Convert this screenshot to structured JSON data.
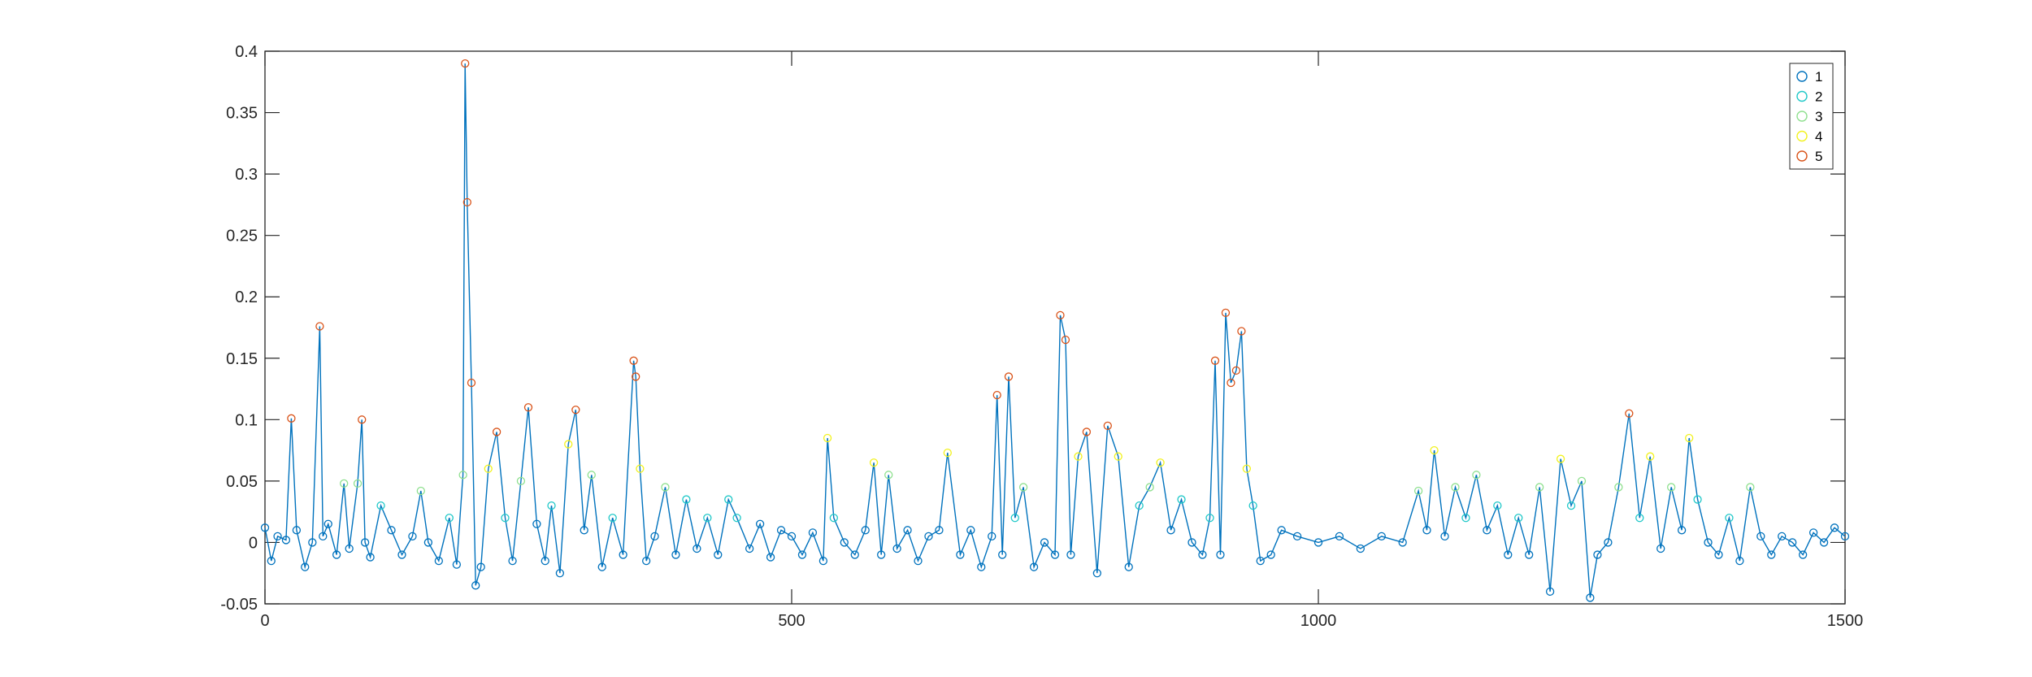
{
  "chart_data": {
    "type": "line",
    "title": "",
    "xlabel": "",
    "ylabel": "",
    "xlim": [
      0,
      1500
    ],
    "ylim": [
      -0.05,
      0.4
    ],
    "xticks": [
      "0",
      "500",
      "1000",
      "1500"
    ],
    "xtick_values": [
      0,
      500,
      1000,
      1500
    ],
    "yticks": [
      "-0.05",
      "0",
      "0.05",
      "0.1",
      "0.15",
      "0.2",
      "0.25",
      "0.3",
      "0.35",
      "0.4"
    ],
    "ytick_values": [
      -0.05,
      0,
      0.05,
      0.1,
      0.15,
      0.2,
      0.25,
      0.3,
      0.35,
      0.4
    ],
    "grid": false,
    "legend_position": "top-right",
    "line_color": "#0072bd",
    "series": [
      {
        "name": "1",
        "color": "#0072bd",
        "marker": "circle"
      },
      {
        "name": "2",
        "color": "#1fc8c8",
        "marker": "circle"
      },
      {
        "name": "3",
        "color": "#8fe08f",
        "marker": "circle"
      },
      {
        "name": "4",
        "color": "#f2f21e",
        "marker": "circle"
      },
      {
        "name": "5",
        "color": "#d95319",
        "marker": "circle"
      }
    ],
    "class_thresholds": [
      0.02,
      0.04,
      0.06,
      0.09
    ],
    "x": [
      0,
      6,
      12,
      20,
      25,
      30,
      38,
      45,
      52,
      55,
      60,
      68,
      75,
      80,
      88,
      92,
      95,
      100,
      110,
      120,
      130,
      140,
      148,
      155,
      165,
      175,
      182,
      188,
      190,
      192,
      196,
      200,
      205,
      212,
      220,
      228,
      235,
      243,
      250,
      258,
      266,
      272,
      280,
      288,
      295,
      303,
      310,
      320,
      330,
      340,
      350,
      352,
      356,
      362,
      370,
      380,
      390,
      400,
      410,
      420,
      430,
      440,
      448,
      460,
      470,
      480,
      490,
      500,
      510,
      520,
      530,
      534,
      540,
      550,
      560,
      570,
      578,
      585,
      592,
      600,
      610,
      620,
      630,
      640,
      648,
      660,
      670,
      680,
      690,
      695,
      700,
      706,
      712,
      720,
      730,
      740,
      750,
      755,
      760,
      765,
      772,
      780,
      790,
      800,
      810,
      820,
      830,
      840,
      850,
      860,
      870,
      880,
      890,
      897,
      902,
      907,
      912,
      917,
      922,
      927,
      932,
      938,
      945,
      955,
      965,
      980,
      1000,
      1020,
      1040,
      1060,
      1080,
      1095,
      1103,
      1110,
      1120,
      1130,
      1140,
      1150,
      1160,
      1170,
      1180,
      1190,
      1200,
      1210,
      1220,
      1230,
      1240,
      1250,
      1258,
      1265,
      1275,
      1285,
      1295,
      1305,
      1315,
      1325,
      1335,
      1345,
      1352,
      1360,
      1370,
      1380,
      1390,
      1400,
      1410,
      1420,
      1430,
      1440,
      1450,
      1460,
      1470,
      1480,
      1490,
      1500
    ],
    "y": [
      0.012,
      -0.015,
      0.005,
      0.002,
      0.101,
      0.01,
      -0.02,
      0.0,
      0.176,
      0.005,
      0.015,
      -0.01,
      0.048,
      -0.005,
      0.048,
      0.1,
      0.0,
      -0.012,
      0.03,
      0.01,
      -0.01,
      0.005,
      0.042,
      0.0,
      -0.015,
      0.02,
      -0.018,
      0.055,
      0.39,
      0.277,
      0.13,
      -0.035,
      -0.02,
      0.06,
      0.09,
      0.02,
      -0.015,
      0.05,
      0.11,
      0.015,
      -0.015,
      0.03,
      -0.025,
      0.08,
      0.108,
      0.01,
      0.055,
      -0.02,
      0.02,
      -0.01,
      0.148,
      0.135,
      0.06,
      -0.015,
      0.005,
      0.045,
      -0.01,
      0.035,
      -0.005,
      0.02,
      -0.01,
      0.035,
      0.02,
      -0.005,
      0.015,
      -0.012,
      0.01,
      0.005,
      -0.01,
      0.008,
      -0.015,
      0.085,
      0.02,
      0.0,
      -0.01,
      0.01,
      0.065,
      -0.01,
      0.055,
      -0.005,
      0.01,
      -0.015,
      0.005,
      0.01,
      0.073,
      -0.01,
      0.01,
      -0.02,
      0.005,
      0.12,
      -0.01,
      0.135,
      0.02,
      0.045,
      -0.02,
      0.0,
      -0.01,
      0.185,
      0.165,
      -0.01,
      0.07,
      0.09,
      -0.025,
      0.095,
      0.07,
      -0.02,
      0.03,
      0.045,
      0.065,
      0.01,
      0.035,
      0.0,
      -0.01,
      0.02,
      0.148,
      -0.01,
      0.187,
      0.13,
      0.14,
      0.172,
      0.06,
      0.03,
      -0.015,
      -0.01,
      0.01,
      0.005,
      0.0,
      0.005,
      -0.005,
      0.005,
      0.0,
      0.042,
      0.01,
      0.075,
      0.005,
      0.045,
      0.02,
      0.055,
      0.01,
      0.03,
      -0.01,
      0.02,
      -0.01,
      0.045,
      -0.04,
      0.068,
      0.03,
      0.05,
      -0.045,
      -0.01,
      0.0,
      0.045,
      0.105,
      0.02,
      0.07,
      -0.005,
      0.045,
      0.01,
      0.085,
      0.035,
      0.0,
      -0.01,
      0.02,
      -0.015,
      0.045,
      0.005,
      -0.01,
      0.005,
      0.0,
      -0.01,
      0.008,
      0.0,
      0.012,
      0.005
    ]
  }
}
